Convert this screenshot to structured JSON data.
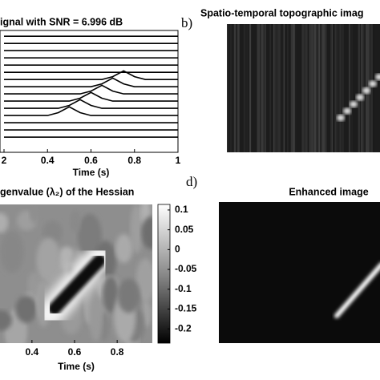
{
  "chart_data": [
    {
      "type": "line",
      "title": "ignal with SNR =  6.996 dB",
      "xlabel": "Time (s)",
      "x": [
        0.2,
        0.25,
        0.3,
        0.35,
        0.4,
        0.45,
        0.5,
        0.55,
        0.6,
        0.65,
        0.7,
        0.75,
        0.8,
        0.85,
        0.9,
        0.95,
        1.0
      ],
      "xlim": [
        0.2,
        1.0
      ],
      "xticks": [
        {
          "value": 0.2,
          "label": "2"
        },
        0.4,
        0.6,
        0.8,
        1
      ],
      "ylim": [
        -1.1,
        15.8
      ],
      "color": "#000000",
      "series": [
        {
          "values": [
            15,
            15,
            15,
            15,
            15,
            15,
            15,
            15,
            15,
            15,
            15,
            15,
            15,
            15,
            15,
            15,
            15
          ]
        },
        {
          "values": [
            14,
            14,
            14,
            14,
            14,
            14,
            14,
            14,
            14,
            14,
            14,
            14,
            14,
            14,
            14,
            14,
            14
          ]
        },
        {
          "values": [
            13,
            13,
            13,
            13,
            13,
            13,
            13,
            13,
            13,
            13,
            13,
            13,
            13,
            13,
            13,
            13,
            13
          ]
        },
        {
          "values": [
            12,
            12,
            12,
            12,
            12,
            12,
            12,
            12,
            12,
            12,
            12,
            12,
            12,
            12,
            12,
            12,
            12
          ]
        },
        {
          "values": [
            11,
            11,
            11,
            11,
            11,
            11,
            11,
            11,
            11,
            11,
            11,
            11,
            11,
            11,
            11,
            11,
            11
          ]
        },
        {
          "values": [
            10,
            10,
            10,
            10,
            10,
            10,
            10,
            10,
            10,
            10,
            10,
            10,
            10,
            10,
            10,
            10,
            10
          ]
        },
        {
          "values": [
            9,
            9,
            9,
            9,
            9,
            9,
            9,
            9,
            9,
            9,
            9.4,
            10.2,
            9.4,
            9,
            9,
            9,
            9
          ]
        },
        {
          "values": [
            8,
            8,
            8,
            8,
            8,
            8,
            8,
            8,
            8,
            8.4,
            9.2,
            8.4,
            8,
            8,
            8,
            8,
            8
          ]
        },
        {
          "values": [
            7,
            7,
            7,
            7,
            7,
            7,
            7,
            7,
            7.4,
            8.2,
            7.4,
            7,
            7,
            7,
            7,
            7,
            7
          ]
        },
        {
          "values": [
            6,
            6,
            6,
            6,
            6,
            6,
            6,
            6.4,
            7.2,
            6.4,
            6,
            6,
            6,
            6,
            6,
            6,
            6
          ]
        },
        {
          "values": [
            5,
            5,
            5,
            5,
            5,
            5,
            5.4,
            6.2,
            5.4,
            5,
            5,
            5,
            5,
            5,
            5,
            5,
            5
          ]
        },
        {
          "values": [
            4,
            4,
            4,
            4,
            4,
            4.4,
            5.2,
            4.4,
            4,
            4,
            4,
            4,
            4,
            4,
            4,
            4,
            4
          ]
        },
        {
          "values": [
            3,
            3,
            3,
            3,
            3,
            3,
            3,
            3,
            3,
            3,
            3,
            3,
            3,
            3,
            3,
            3,
            3
          ]
        },
        {
          "values": [
            2,
            2,
            2,
            2,
            2,
            2,
            2,
            2,
            2,
            2,
            2,
            2,
            2,
            2,
            2,
            2,
            2
          ]
        },
        {
          "values": [
            1,
            1,
            1,
            1,
            1,
            1,
            1,
            1,
            1,
            1,
            1,
            1,
            1,
            1,
            1,
            1,
            1
          ]
        }
      ]
    },
    {
      "type": "image",
      "panel_label": "b)",
      "title": "Spatio-temporal topographic imag"
    },
    {
      "type": "heatmap",
      "title": "genvalue (λ₂) of the Hessian",
      "xlabel": "Time (s)",
      "xlim": [
        0.25,
        0.965
      ],
      "xticks": [
        0.4,
        0.6,
        0.8
      ],
      "colorbar_lim": [
        -0.236,
        0.114
      ],
      "colorbar_ticks": [
        0.1,
        0.05,
        0,
        -0.05,
        -0.1,
        -0.15,
        -0.2
      ]
    },
    {
      "type": "image",
      "panel_label": "d)",
      "title": "Enhanced image"
    }
  ]
}
